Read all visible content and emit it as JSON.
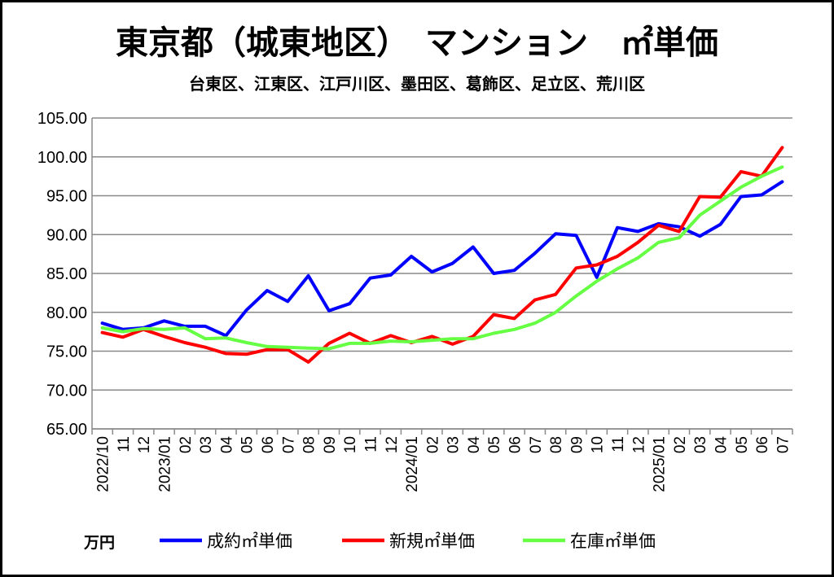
{
  "chart_data": {
    "type": "line",
    "title": "東京都（城東地区）　マンション　㎡単価",
    "subtitle": "台東区、江東区、江戸川区、墨田区、葛飾区、足立区、荒川区",
    "unit_label": "万円",
    "xlabel": "",
    "ylabel": "",
    "ylim": [
      65,
      105
    ],
    "yticks": [
      "65.00",
      "70.00",
      "75.00",
      "80.00",
      "85.00",
      "90.00",
      "95.00",
      "100.00",
      "105.00"
    ],
    "grid": true,
    "legend_position": "bottom",
    "categories": [
      "2022/10",
      "11",
      "12",
      "2023/01",
      "02",
      "03",
      "04",
      "05",
      "06",
      "07",
      "08",
      "09",
      "10",
      "11",
      "12",
      "2024/01",
      "02",
      "03",
      "04",
      "05",
      "06",
      "07",
      "08",
      "09",
      "10",
      "11",
      "12",
      "2025/01",
      "02",
      "03",
      "04",
      "05",
      "06",
      "07"
    ],
    "series": [
      {
        "name": "成約㎡単価",
        "color": "#0000ff",
        "values": [
          78.6,
          77.8,
          78.0,
          78.9,
          78.2,
          78.2,
          77.0,
          80.3,
          82.8,
          81.4,
          84.7,
          80.2,
          81.1,
          84.4,
          84.8,
          87.2,
          85.2,
          86.3,
          88.4,
          85.0,
          85.4,
          87.6,
          90.1,
          89.9,
          84.5,
          90.9,
          90.4,
          91.4,
          91.0,
          89.8,
          91.3,
          94.9,
          95.1,
          96.8
        ]
      },
      {
        "name": "新規㎡単価",
        "color": "#ff0000",
        "values": [
          77.4,
          76.8,
          77.8,
          76.9,
          76.1,
          75.5,
          74.7,
          74.6,
          75.2,
          75.2,
          73.6,
          76.0,
          77.3,
          76.0,
          77.0,
          76.1,
          76.9,
          75.9,
          76.9,
          79.7,
          79.2,
          81.6,
          82.3,
          85.7,
          86.1,
          87.2,
          89.0,
          91.2,
          90.4,
          94.9,
          94.8,
          98.1,
          97.5,
          101.2
        ]
      },
      {
        "name": "在庫㎡単価",
        "color": "#66ff44",
        "values": [
          78.0,
          77.5,
          77.9,
          77.8,
          78.0,
          76.6,
          76.7,
          76.1,
          75.6,
          75.5,
          75.4,
          75.3,
          76.0,
          76.0,
          76.3,
          76.2,
          76.4,
          76.6,
          76.6,
          77.3,
          77.8,
          78.6,
          80.0,
          82.1,
          84.0,
          85.6,
          87.0,
          89.0,
          89.6,
          92.5,
          94.3,
          96.1,
          97.5,
          98.7
        ]
      }
    ]
  }
}
